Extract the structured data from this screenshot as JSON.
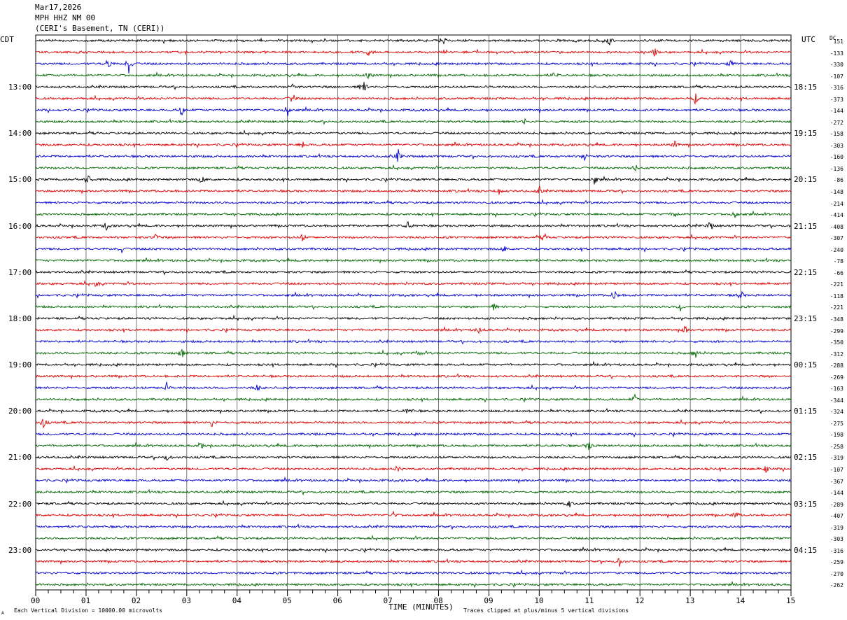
{
  "header": {
    "date": "Mar17,2026",
    "station": "MPH HHZ NM 00",
    "location": "(CERI's Basement, TN (CERI))"
  },
  "left_timezone": "CDT",
  "right_timezone": "UTC",
  "dc_label": "DC",
  "xlabel": "TIME (MINUTES)",
  "footer": {
    "scale_note": "Each Vertical Division = 10000.00 microvolts",
    "clip_note": "Traces clipped at plus/minus 5 vertical divisions",
    "corner_mark": "A"
  },
  "colors": {
    "trace_cycle": [
      "#000000",
      "#dd0000",
      "#0000cc",
      "#006600"
    ],
    "grid": "#000000"
  },
  "chart_data": {
    "type": "line",
    "title": "",
    "x_range": [
      0,
      15
    ],
    "x_ticks": [
      "00",
      "01",
      "02",
      "03",
      "04",
      "05",
      "06",
      "07",
      "08",
      "09",
      "10",
      "11",
      "12",
      "13",
      "14",
      "15"
    ],
    "trace_count": 48,
    "minutes_per_trace": 15,
    "left_hour_labels": [
      {
        "trace": 4,
        "label": "13:00"
      },
      {
        "trace": 8,
        "label": "14:00"
      },
      {
        "trace": 12,
        "label": "15:00"
      },
      {
        "trace": 16,
        "label": "16:00"
      },
      {
        "trace": 20,
        "label": "17:00"
      },
      {
        "trace": 24,
        "label": "18:00"
      },
      {
        "trace": 28,
        "label": "19:00"
      },
      {
        "trace": 32,
        "label": "20:00"
      },
      {
        "trace": 36,
        "label": "21:00"
      },
      {
        "trace": 40,
        "label": "22:00"
      },
      {
        "trace": 44,
        "label": "23:00"
      }
    ],
    "right_hour_labels": [
      {
        "trace": 4,
        "label": "18:15"
      },
      {
        "trace": 8,
        "label": "19:15"
      },
      {
        "trace": 12,
        "label": "20:15"
      },
      {
        "trace": 16,
        "label": "21:15"
      },
      {
        "trace": 20,
        "label": "22:15"
      },
      {
        "trace": 24,
        "label": "23:15"
      },
      {
        "trace": 28,
        "label": "00:15"
      },
      {
        "trace": 32,
        "label": "01:15"
      },
      {
        "trace": 36,
        "label": "02:15"
      },
      {
        "trace": 40,
        "label": "03:15"
      },
      {
        "trace": 44,
        "label": "04:15"
      }
    ],
    "dc_offsets": [
      "151",
      "-133",
      "-330",
      "-107",
      "-316",
      "-373",
      "-144",
      "-272",
      "-158",
      "-303",
      "-160",
      "-136",
      "-86",
      "-148",
      "-214",
      "-414",
      "-408",
      "-307",
      "-240",
      "-78",
      "-66",
      "-221",
      "-118",
      "-221",
      "-348",
      "-299",
      "-350",
      "-312",
      "-288",
      "-269",
      "-163",
      "-344",
      "-324",
      "-275",
      "-198",
      "-258",
      "-319",
      "-107",
      "-367",
      "-144",
      "-289",
      "-407",
      "-319",
      "-303",
      "-316",
      "-259",
      "-270",
      "-262"
    ],
    "events": [
      {
        "trace": 0,
        "minute": 8.1,
        "amp": 6
      },
      {
        "trace": 0,
        "minute": 11.4,
        "amp": 8
      },
      {
        "trace": 1,
        "minute": 6.6,
        "amp": 5
      },
      {
        "trace": 1,
        "minute": 12.3,
        "amp": 5
      },
      {
        "trace": 2,
        "minute": 1.45,
        "amp": 12
      },
      {
        "trace": 2,
        "minute": 1.85,
        "amp": 16
      },
      {
        "trace": 2,
        "minute": 13.8,
        "amp": 5
      },
      {
        "trace": 3,
        "minute": 6.6,
        "amp": 7
      },
      {
        "trace": 3,
        "minute": 10.3,
        "amp": 6
      },
      {
        "trace": 4,
        "minute": 6.5,
        "amp": 14
      },
      {
        "trace": 4,
        "minute": 5.1,
        "amp": 5
      },
      {
        "trace": 5,
        "minute": 13.1,
        "amp": 8
      },
      {
        "trace": 5,
        "minute": 5.1,
        "amp": 9
      },
      {
        "trace": 6,
        "minute": 2.9,
        "amp": 9
      },
      {
        "trace": 6,
        "minute": 5.0,
        "amp": 9
      },
      {
        "trace": 7,
        "minute": 9.7,
        "amp": 5
      },
      {
        "trace": 9,
        "minute": 5.3,
        "amp": 5
      },
      {
        "trace": 9,
        "minute": 12.7,
        "amp": 5
      },
      {
        "trace": 10,
        "minute": 7.2,
        "amp": 10
      },
      {
        "trace": 10,
        "minute": 10.9,
        "amp": 6
      },
      {
        "trace": 11,
        "minute": 11.9,
        "amp": 6
      },
      {
        "trace": 12,
        "minute": 1.05,
        "amp": 8
      },
      {
        "trace": 12,
        "minute": 3.3,
        "amp": 7
      },
      {
        "trace": 12,
        "minute": 11.1,
        "amp": 8
      },
      {
        "trace": 13,
        "minute": 9.2,
        "amp": 5
      },
      {
        "trace": 13,
        "minute": 10.0,
        "amp": 6
      },
      {
        "trace": 15,
        "minute": 12.7,
        "amp": 7
      },
      {
        "trace": 15,
        "minute": 13.9,
        "amp": 6
      },
      {
        "trace": 16,
        "minute": 1.4,
        "amp": 6
      },
      {
        "trace": 16,
        "minute": 7.4,
        "amp": 8
      },
      {
        "trace": 16,
        "minute": 13.4,
        "amp": 8
      },
      {
        "trace": 17,
        "minute": 2.4,
        "amp": 6
      },
      {
        "trace": 17,
        "minute": 5.3,
        "amp": 6
      },
      {
        "trace": 17,
        "minute": 10.1,
        "amp": 6
      },
      {
        "trace": 18,
        "minute": 1.7,
        "amp": 6
      },
      {
        "trace": 18,
        "minute": 9.3,
        "amp": 5
      },
      {
        "trace": 21,
        "minute": 1.2,
        "amp": 5
      },
      {
        "trace": 22,
        "minute": 11.5,
        "amp": 10
      },
      {
        "trace": 22,
        "minute": 14.0,
        "amp": 8
      },
      {
        "trace": 23,
        "minute": 12.8,
        "amp": 6
      },
      {
        "trace": 23,
        "minute": 9.1,
        "amp": 5
      },
      {
        "trace": 25,
        "minute": 12.9,
        "amp": 7
      },
      {
        "trace": 25,
        "minute": 8.8,
        "amp": 5
      },
      {
        "trace": 27,
        "minute": 2.9,
        "amp": 8
      },
      {
        "trace": 27,
        "minute": 7.6,
        "amp": 6
      },
      {
        "trace": 27,
        "minute": 13.1,
        "amp": 8
      },
      {
        "trace": 30,
        "minute": 2.6,
        "amp": 7
      },
      {
        "trace": 30,
        "minute": 4.4,
        "amp": 5
      },
      {
        "trace": 31,
        "minute": 11.9,
        "amp": 6
      },
      {
        "trace": 32,
        "minute": 7.4,
        "amp": 7
      },
      {
        "trace": 33,
        "minute": 0.15,
        "amp": 8
      },
      {
        "trace": 33,
        "minute": 3.5,
        "amp": 6
      },
      {
        "trace": 35,
        "minute": 11.0,
        "amp": 9
      },
      {
        "trace": 35,
        "minute": 3.3,
        "amp": 5
      },
      {
        "trace": 36,
        "minute": 2.6,
        "amp": 5
      },
      {
        "trace": 37,
        "minute": 14.5,
        "amp": 7
      },
      {
        "trace": 37,
        "minute": 7.2,
        "amp": 5
      },
      {
        "trace": 40,
        "minute": 10.6,
        "amp": 6
      },
      {
        "trace": 41,
        "minute": 13.9,
        "amp": 6
      },
      {
        "trace": 41,
        "minute": 7.1,
        "amp": 5
      },
      {
        "trace": 45,
        "minute": 11.6,
        "amp": 7
      }
    ]
  }
}
